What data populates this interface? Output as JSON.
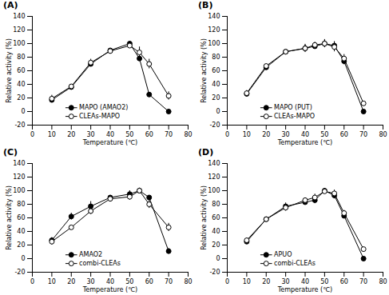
{
  "chart_data": [
    {
      "type": "line",
      "title": "(A)",
      "xlabel": "Temperature (℃)",
      "ylabel": "Relative activity (%)",
      "x": [
        10,
        20,
        30,
        40,
        50,
        55,
        60,
        70
      ],
      "series": [
        {
          "name": "MAPO (AMAO2)",
          "color": "#000000",
          "marker": "circle",
          "values": [
            17,
            36,
            70,
            90,
            100,
            78,
            25,
            0
          ],
          "errors": [
            4,
            3,
            4,
            2,
            3,
            3,
            1,
            3
          ]
        },
        {
          "name": "CLEAs-MAPO",
          "color": "#000000",
          "marker": "open-circle",
          "values": [
            19,
            37,
            72,
            89,
            97,
            87,
            70,
            23
          ],
          "errors": [
            5,
            3,
            5,
            2,
            4,
            8,
            7,
            6
          ]
        }
      ],
      "xlim": [
        0,
        80
      ],
      "xticks": [
        0,
        10,
        20,
        30,
        40,
        50,
        60,
        70,
        80
      ],
      "ylim": [
        -20,
        140
      ],
      "yticks": [
        -20,
        0,
        20,
        40,
        60,
        80,
        100,
        120,
        140
      ],
      "grid": false,
      "legend": "lower center"
    },
    {
      "type": "line",
      "title": "(B)",
      "xlabel": "Temperature (℃)",
      "ylabel": "Relative activity (%)",
      "x": [
        10,
        20,
        30,
        40,
        45,
        50,
        55,
        60,
        70
      ],
      "series": [
        {
          "name": "MAPO (PUT)",
          "color": "#000000",
          "marker": "circle",
          "values": [
            26,
            65,
            88,
            93,
            96,
            100,
            97,
            74,
            0
          ],
          "errors": [
            4,
            4,
            2,
            6,
            4,
            5,
            6,
            5,
            2
          ]
        },
        {
          "name": "CLEAs-MAPO",
          "color": "#000000",
          "marker": "open-circle",
          "values": [
            27,
            67,
            88,
            93,
            98,
            100,
            95,
            78,
            12
          ],
          "errors": [
            4,
            3,
            2,
            5,
            4,
            6,
            7,
            6,
            2
          ]
        }
      ],
      "xlim": [
        0,
        80
      ],
      "xticks": [
        0,
        10,
        20,
        30,
        40,
        50,
        60,
        70,
        80
      ],
      "ylim": [
        -20,
        140
      ],
      "yticks": [
        -20,
        0,
        20,
        40,
        60,
        80,
        100,
        120,
        140
      ],
      "grid": false,
      "legend": "lower center"
    },
    {
      "type": "line",
      "title": "(C)",
      "xlabel": "Temperature (℃)",
      "ylabel": "Relative activity (%)",
      "x": [
        10,
        20,
        30,
        40,
        50,
        55,
        60,
        70
      ],
      "series": [
        {
          "name": "AMAO2",
          "color": "#000000",
          "marker": "circle",
          "values": [
            27,
            62,
            77,
            90,
            95,
            100,
            90,
            11
          ],
          "errors": [
            4,
            5,
            7,
            3,
            5,
            3,
            2,
            4
          ]
        },
        {
          "name": "combi-CLEAs",
          "color": "#000000",
          "marker": "open-circle",
          "values": [
            25,
            46,
            70,
            88,
            91,
            100,
            80,
            46
          ],
          "errors": [
            5,
            2,
            5,
            2,
            5,
            4,
            6,
            6
          ]
        }
      ],
      "xlim": [
        0,
        80
      ],
      "xticks": [
        0,
        10,
        20,
        30,
        40,
        50,
        60,
        70,
        80
      ],
      "ylim": [
        -20,
        140
      ],
      "yticks": [
        -20,
        0,
        20,
        40,
        60,
        80,
        100,
        120,
        140
      ],
      "grid": false,
      "legend": "lower center"
    },
    {
      "type": "line",
      "title": "(D)",
      "xlabel": "Temperature (℃)",
      "ylabel": "Relative activity (%)",
      "x": [
        10,
        20,
        30,
        40,
        45,
        50,
        55,
        60,
        70
      ],
      "series": [
        {
          "name": "APUO",
          "color": "#000000",
          "marker": "circle",
          "values": [
            25,
            58,
            77,
            83,
            86,
            100,
            93,
            63,
            0
          ],
          "errors": [
            3,
            3,
            5,
            3,
            5,
            3,
            5,
            3,
            2
          ]
        },
        {
          "name": "combi-CLEAs",
          "color": "#000000",
          "marker": "open-circle",
          "values": [
            27,
            58,
            75,
            86,
            90,
            99,
            96,
            67,
            14
          ],
          "errors": [
            3,
            3,
            5,
            3,
            5,
            4,
            5,
            4,
            2
          ]
        }
      ],
      "xlim": [
        0,
        80
      ],
      "xticks": [
        0,
        10,
        20,
        30,
        40,
        50,
        60,
        70,
        80
      ],
      "ylim": [
        -20,
        140
      ],
      "yticks": [
        -20,
        0,
        20,
        40,
        60,
        80,
        100,
        120,
        140
      ],
      "grid": false,
      "legend": "lower center"
    }
  ]
}
